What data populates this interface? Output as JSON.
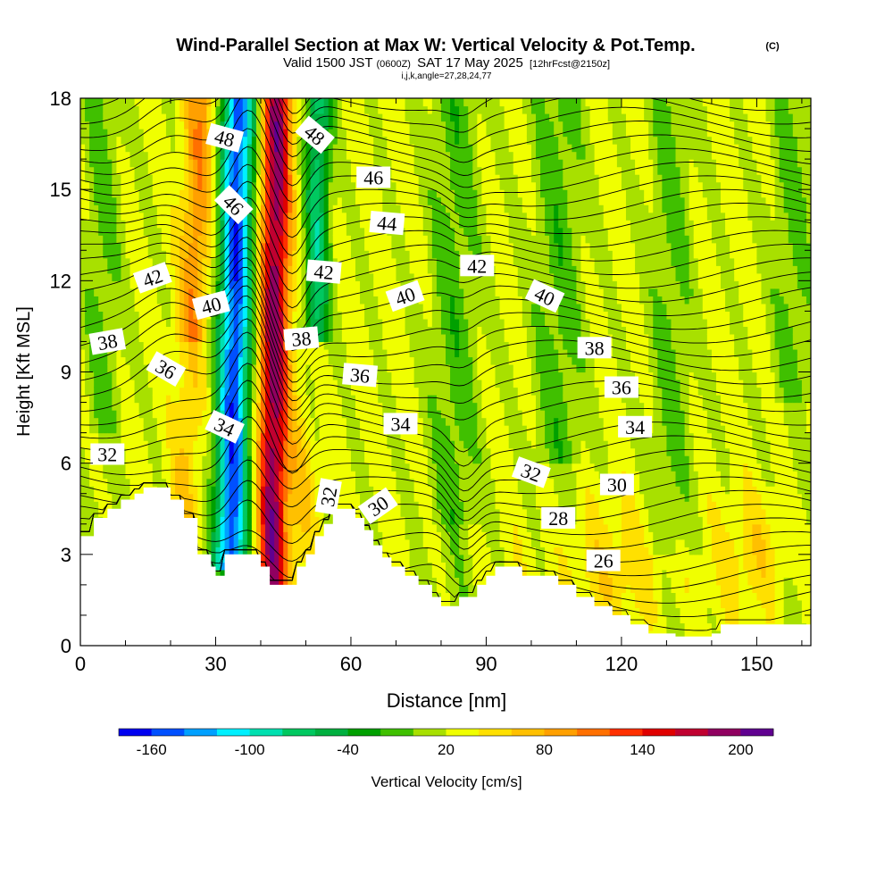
{
  "chart_data": {
    "type": "heatmap",
    "title": "Wind-Parallel Section at Max W: Vertical Velocity & Pot.Temp.",
    "copyright": "(C)",
    "subtitle_main": "Valid 1500 JST",
    "subtitle_utc": "(0600Z)",
    "subtitle_date": "SAT 17 May 2025",
    "subtitle_fcst": "[12hrFcst@2150z]",
    "subtitle_indices": "i,j,k,angle=27,28,24,77",
    "xlabel": "Distance [nm]",
    "ylabel": "Height [Kft MSL]",
    "xlim": [
      0,
      162
    ],
    "ylim": [
      0,
      18
    ],
    "x_ticks": [
      "0",
      "30",
      "60",
      "90",
      "120",
      "150"
    ],
    "x_tick_values": [
      0,
      30,
      60,
      90,
      120,
      150
    ],
    "y_ticks": [
      "0",
      "3",
      "6",
      "9",
      "12",
      "15",
      "18"
    ],
    "y_tick_values": [
      0,
      3,
      6,
      9,
      12,
      15,
      18
    ],
    "colorbar": {
      "label": "Vertical Velocity [cm/s]",
      "tick_labels": [
        "-160",
        "-100",
        "-40",
        "20",
        "80",
        "140",
        "200"
      ],
      "tick_values": [
        -160,
        -100,
        -40,
        20,
        80,
        140,
        200
      ],
      "range": [
        -180,
        220
      ],
      "colors": [
        "#0000f0",
        "#0050ff",
        "#00a0ff",
        "#00f0ff",
        "#00e0b0",
        "#00c860",
        "#00b040",
        "#00a000",
        "#40c000",
        "#a8e000",
        "#f0ff00",
        "#ffe000",
        "#ffc000",
        "#ffa000",
        "#ff7000",
        "#ff3000",
        "#e00000",
        "#c00030",
        "#900060",
        "#600090"
      ]
    },
    "terrain": [
      [
        0,
        3.6
      ],
      [
        3,
        4.2
      ],
      [
        6,
        4.5
      ],
      [
        9,
        4.8
      ],
      [
        12,
        5.0
      ],
      [
        14,
        5.2
      ],
      [
        17,
        5.2
      ],
      [
        20,
        4.8
      ],
      [
        23,
        4.2
      ],
      [
        26,
        3.0
      ],
      [
        29,
        2.6
      ],
      [
        30,
        2.3
      ],
      [
        32,
        3.0
      ],
      [
        35,
        3.0
      ],
      [
        38,
        3.0
      ],
      [
        40,
        2.6
      ],
      [
        42,
        2.0
      ],
      [
        45,
        2.0
      ],
      [
        48,
        2.6
      ],
      [
        50,
        3.0
      ],
      [
        52,
        3.6
      ],
      [
        54,
        4.0
      ],
      [
        56,
        4.5
      ],
      [
        59,
        4.5
      ],
      [
        61,
        4.2
      ],
      [
        63,
        3.8
      ],
      [
        65,
        3.3
      ],
      [
        67,
        2.9
      ],
      [
        69,
        2.6
      ],
      [
        72,
        2.3
      ],
      [
        75,
        2.0
      ],
      [
        78,
        1.6
      ],
      [
        80,
        1.3
      ],
      [
        82,
        1.3
      ],
      [
        84,
        1.6
      ],
      [
        86,
        1.6
      ],
      [
        88,
        2.0
      ],
      [
        90,
        2.3
      ],
      [
        92,
        2.6
      ],
      [
        96,
        2.6
      ],
      [
        98,
        2.3
      ],
      [
        102,
        2.3
      ],
      [
        106,
        2.0
      ],
      [
        110,
        1.6
      ],
      [
        114,
        1.3
      ],
      [
        118,
        1.0
      ],
      [
        122,
        0.7
      ],
      [
        126,
        0.4
      ],
      [
        132,
        0.3
      ],
      [
        136,
        0.3
      ],
      [
        140,
        0.4
      ],
      [
        142,
        0.7
      ],
      [
        148,
        0.7
      ],
      [
        156,
        0.7
      ],
      [
        162,
        0.7
      ]
    ],
    "theta_contours": {
      "levels_K": [
        24,
        48
      ],
      "labels": [
        {
          "text": "48",
          "x": 32,
          "y": 16.7,
          "angle": 15
        },
        {
          "text": "48",
          "x": 52,
          "y": 16.8,
          "angle": 40
        },
        {
          "text": "46",
          "x": 34,
          "y": 14.5,
          "angle": 45
        },
        {
          "text": "46",
          "x": 65,
          "y": 15.4,
          "angle": 0
        },
        {
          "text": "44",
          "x": 68,
          "y": 13.9,
          "angle": 5
        },
        {
          "text": "42",
          "x": 16,
          "y": 12.1,
          "angle": -20
        },
        {
          "text": "42",
          "x": 54,
          "y": 12.3,
          "angle": 5
        },
        {
          "text": "42",
          "x": 88,
          "y": 12.5,
          "angle": 0
        },
        {
          "text": "40",
          "x": 29,
          "y": 11.2,
          "angle": -15
        },
        {
          "text": "40",
          "x": 72,
          "y": 11.5,
          "angle": -20
        },
        {
          "text": "40",
          "x": 103,
          "y": 11.5,
          "angle": 25
        },
        {
          "text": "38",
          "x": 6,
          "y": 10.0,
          "angle": -10
        },
        {
          "text": "38",
          "x": 49,
          "y": 10.1,
          "angle": -5
        },
        {
          "text": "38",
          "x": 114,
          "y": 9.8,
          "angle": 0
        },
        {
          "text": "36",
          "x": 19,
          "y": 9.1,
          "angle": 30
        },
        {
          "text": "36",
          "x": 62,
          "y": 8.9,
          "angle": 5
        },
        {
          "text": "36",
          "x": 120,
          "y": 8.5,
          "angle": 0
        },
        {
          "text": "34",
          "x": 32,
          "y": 7.2,
          "angle": 25
        },
        {
          "text": "34",
          "x": 71,
          "y": 7.3,
          "angle": 0
        },
        {
          "text": "34",
          "x": 123,
          "y": 7.2,
          "angle": 0
        },
        {
          "text": "32",
          "x": 6,
          "y": 6.3,
          "angle": 0
        },
        {
          "text": "32",
          "x": 55,
          "y": 4.9,
          "angle": -80
        },
        {
          "text": "32",
          "x": 100,
          "y": 5.7,
          "angle": 20
        },
        {
          "text": "30",
          "x": 66,
          "y": 4.6,
          "angle": -35
        },
        {
          "text": "30",
          "x": 119,
          "y": 5.3,
          "angle": 0
        },
        {
          "text": "28",
          "x": 106,
          "y": 4.2,
          "angle": 0
        },
        {
          "text": "26",
          "x": 116,
          "y": 2.8,
          "angle": 0
        }
      ]
    },
    "w_field": {
      "units": "cm/s",
      "features": [
        {
          "x": 33,
          "z_bottom": 2.5,
          "z_top": 18,
          "w_min": -160
        },
        {
          "x": 43,
          "z_bottom": 2.0,
          "z_top": 18,
          "w_max": 150
        },
        {
          "x": 23,
          "z_bottom": 4.0,
          "z_top": 18,
          "w_max": 60
        },
        {
          "x": 53,
          "z_bottom": 4.0,
          "z_top": 18,
          "w_min": -90
        },
        {
          "x": 150,
          "z_bottom": 1.0,
          "z_top": 5.0,
          "w_max": 50
        }
      ]
    }
  }
}
